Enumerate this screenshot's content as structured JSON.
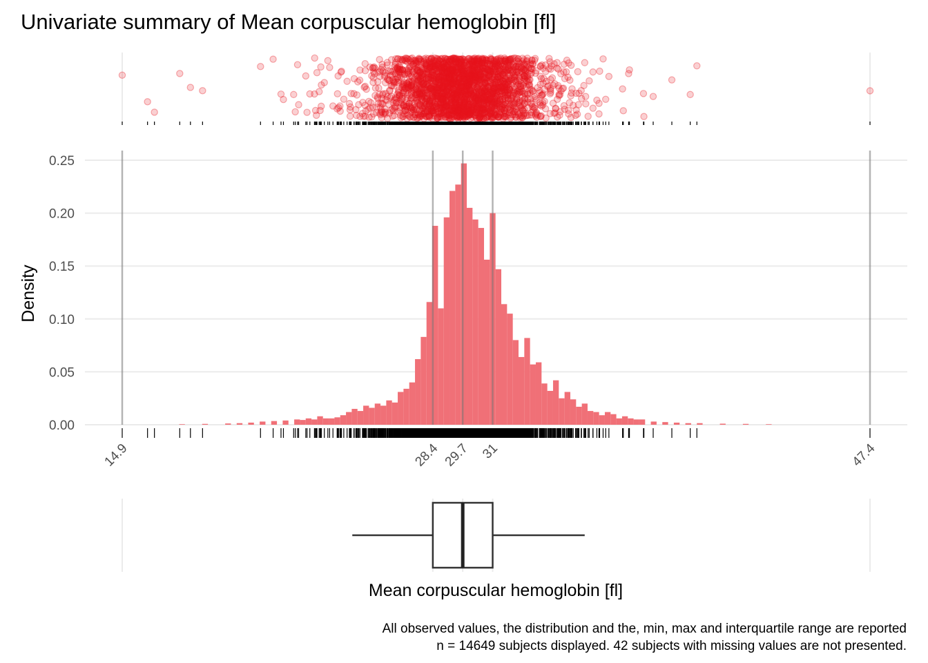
{
  "chart_data": {
    "type": "bar",
    "title": "Univariate summary of Mean corpuscular hemoglobin [fl]",
    "xlabel": "Mean corpuscular hemoglobin [fl]",
    "ylabel": "Density",
    "xlim": [
      14.9,
      47.4
    ],
    "ylim": [
      0,
      0.26
    ],
    "y_ticks": [
      "0.00",
      "0.05",
      "0.10",
      "0.15",
      "0.20",
      "0.25"
    ],
    "x_ticks": [
      "14.9",
      "28.4",
      "29.7",
      "31",
      "47.4"
    ],
    "x_tick_values": [
      14.9,
      28.4,
      29.7,
      31.0,
      47.4
    ],
    "reference_lines": [
      14.9,
      28.4,
      29.7,
      31.0,
      47.4
    ],
    "bar_color": "#f07077",
    "point_color": "#e8141e",
    "histogram": {
      "bin_width": 0.25,
      "bins": [
        {
          "x": 17.5,
          "y": 0.0005
        },
        {
          "x": 18.5,
          "y": 0.0008
        },
        {
          "x": 19.5,
          "y": 0.0012
        },
        {
          "x": 20.0,
          "y": 0.0015
        },
        {
          "x": 20.5,
          "y": 0.002
        },
        {
          "x": 21.0,
          "y": 0.003
        },
        {
          "x": 21.5,
          "y": 0.0035
        },
        {
          "x": 22.0,
          "y": 0.004
        },
        {
          "x": 22.5,
          "y": 0.005
        },
        {
          "x": 22.75,
          "y": 0.0045
        },
        {
          "x": 23.0,
          "y": 0.006
        },
        {
          "x": 23.25,
          "y": 0.005
        },
        {
          "x": 23.5,
          "y": 0.008
        },
        {
          "x": 23.75,
          "y": 0.006
        },
        {
          "x": 24.0,
          "y": 0.006
        },
        {
          "x": 24.25,
          "y": 0.007
        },
        {
          "x": 24.5,
          "y": 0.009
        },
        {
          "x": 24.75,
          "y": 0.012
        },
        {
          "x": 25.0,
          "y": 0.015
        },
        {
          "x": 25.25,
          "y": 0.013
        },
        {
          "x": 25.5,
          "y": 0.018
        },
        {
          "x": 25.75,
          "y": 0.016
        },
        {
          "x": 26.0,
          "y": 0.02
        },
        {
          "x": 26.25,
          "y": 0.018
        },
        {
          "x": 26.5,
          "y": 0.023
        },
        {
          "x": 26.75,
          "y": 0.021
        },
        {
          "x": 27.0,
          "y": 0.031
        },
        {
          "x": 27.25,
          "y": 0.034
        },
        {
          "x": 27.5,
          "y": 0.04
        },
        {
          "x": 27.75,
          "y": 0.062
        },
        {
          "x": 28.0,
          "y": 0.083
        },
        {
          "x": 28.25,
          "y": 0.116
        },
        {
          "x": 28.5,
          "y": 0.188
        },
        {
          "x": 28.75,
          "y": 0.11
        },
        {
          "x": 29.0,
          "y": 0.196
        },
        {
          "x": 29.25,
          "y": 0.221
        },
        {
          "x": 29.5,
          "y": 0.227
        },
        {
          "x": 29.75,
          "y": 0.247
        },
        {
          "x": 30.0,
          "y": 0.205
        },
        {
          "x": 30.25,
          "y": 0.194
        },
        {
          "x": 30.5,
          "y": 0.186
        },
        {
          "x": 30.75,
          "y": 0.156
        },
        {
          "x": 31.0,
          "y": 0.2
        },
        {
          "x": 31.25,
          "y": 0.147
        },
        {
          "x": 31.5,
          "y": 0.114
        },
        {
          "x": 31.75,
          "y": 0.105
        },
        {
          "x": 32.0,
          "y": 0.08
        },
        {
          "x": 32.25,
          "y": 0.064
        },
        {
          "x": 32.5,
          "y": 0.082
        },
        {
          "x": 32.75,
          "y": 0.057
        },
        {
          "x": 33.0,
          "y": 0.059
        },
        {
          "x": 33.25,
          "y": 0.039
        },
        {
          "x": 33.5,
          "y": 0.032
        },
        {
          "x": 33.75,
          "y": 0.042
        },
        {
          "x": 34.0,
          "y": 0.025
        },
        {
          "x": 34.25,
          "y": 0.031
        },
        {
          "x": 34.5,
          "y": 0.024
        },
        {
          "x": 34.75,
          "y": 0.017
        },
        {
          "x": 35.0,
          "y": 0.02
        },
        {
          "x": 35.25,
          "y": 0.013
        },
        {
          "x": 35.5,
          "y": 0.012
        },
        {
          "x": 35.75,
          "y": 0.009
        },
        {
          "x": 36.0,
          "y": 0.012
        },
        {
          "x": 36.25,
          "y": 0.01
        },
        {
          "x": 36.5,
          "y": 0.006
        },
        {
          "x": 36.75,
          "y": 0.008
        },
        {
          "x": 37.0,
          "y": 0.006
        },
        {
          "x": 37.25,
          "y": 0.005
        },
        {
          "x": 37.5,
          "y": 0.005
        },
        {
          "x": 38.0,
          "y": 0.003
        },
        {
          "x": 38.5,
          "y": 0.0025
        },
        {
          "x": 39.0,
          "y": 0.002
        },
        {
          "x": 39.5,
          "y": 0.0015
        },
        {
          "x": 40.0,
          "y": 0.0015
        },
        {
          "x": 41.0,
          "y": 0.001
        },
        {
          "x": 42.0,
          "y": 0.0008
        },
        {
          "x": 43.0,
          "y": 0.0005
        }
      ]
    },
    "boxplot": {
      "whisker_low": 24.9,
      "q1": 28.4,
      "median": 29.7,
      "q3": 31.0,
      "whisker_high": 35.0
    },
    "rug_range": [
      14.9,
      47.4
    ],
    "caption_lines": [
      "All observed values, the distribution and the, min, max and interquartile range are reported",
      "n = 14649 subjects displayed. 42 subjects with missing values are not presented."
    ]
  }
}
